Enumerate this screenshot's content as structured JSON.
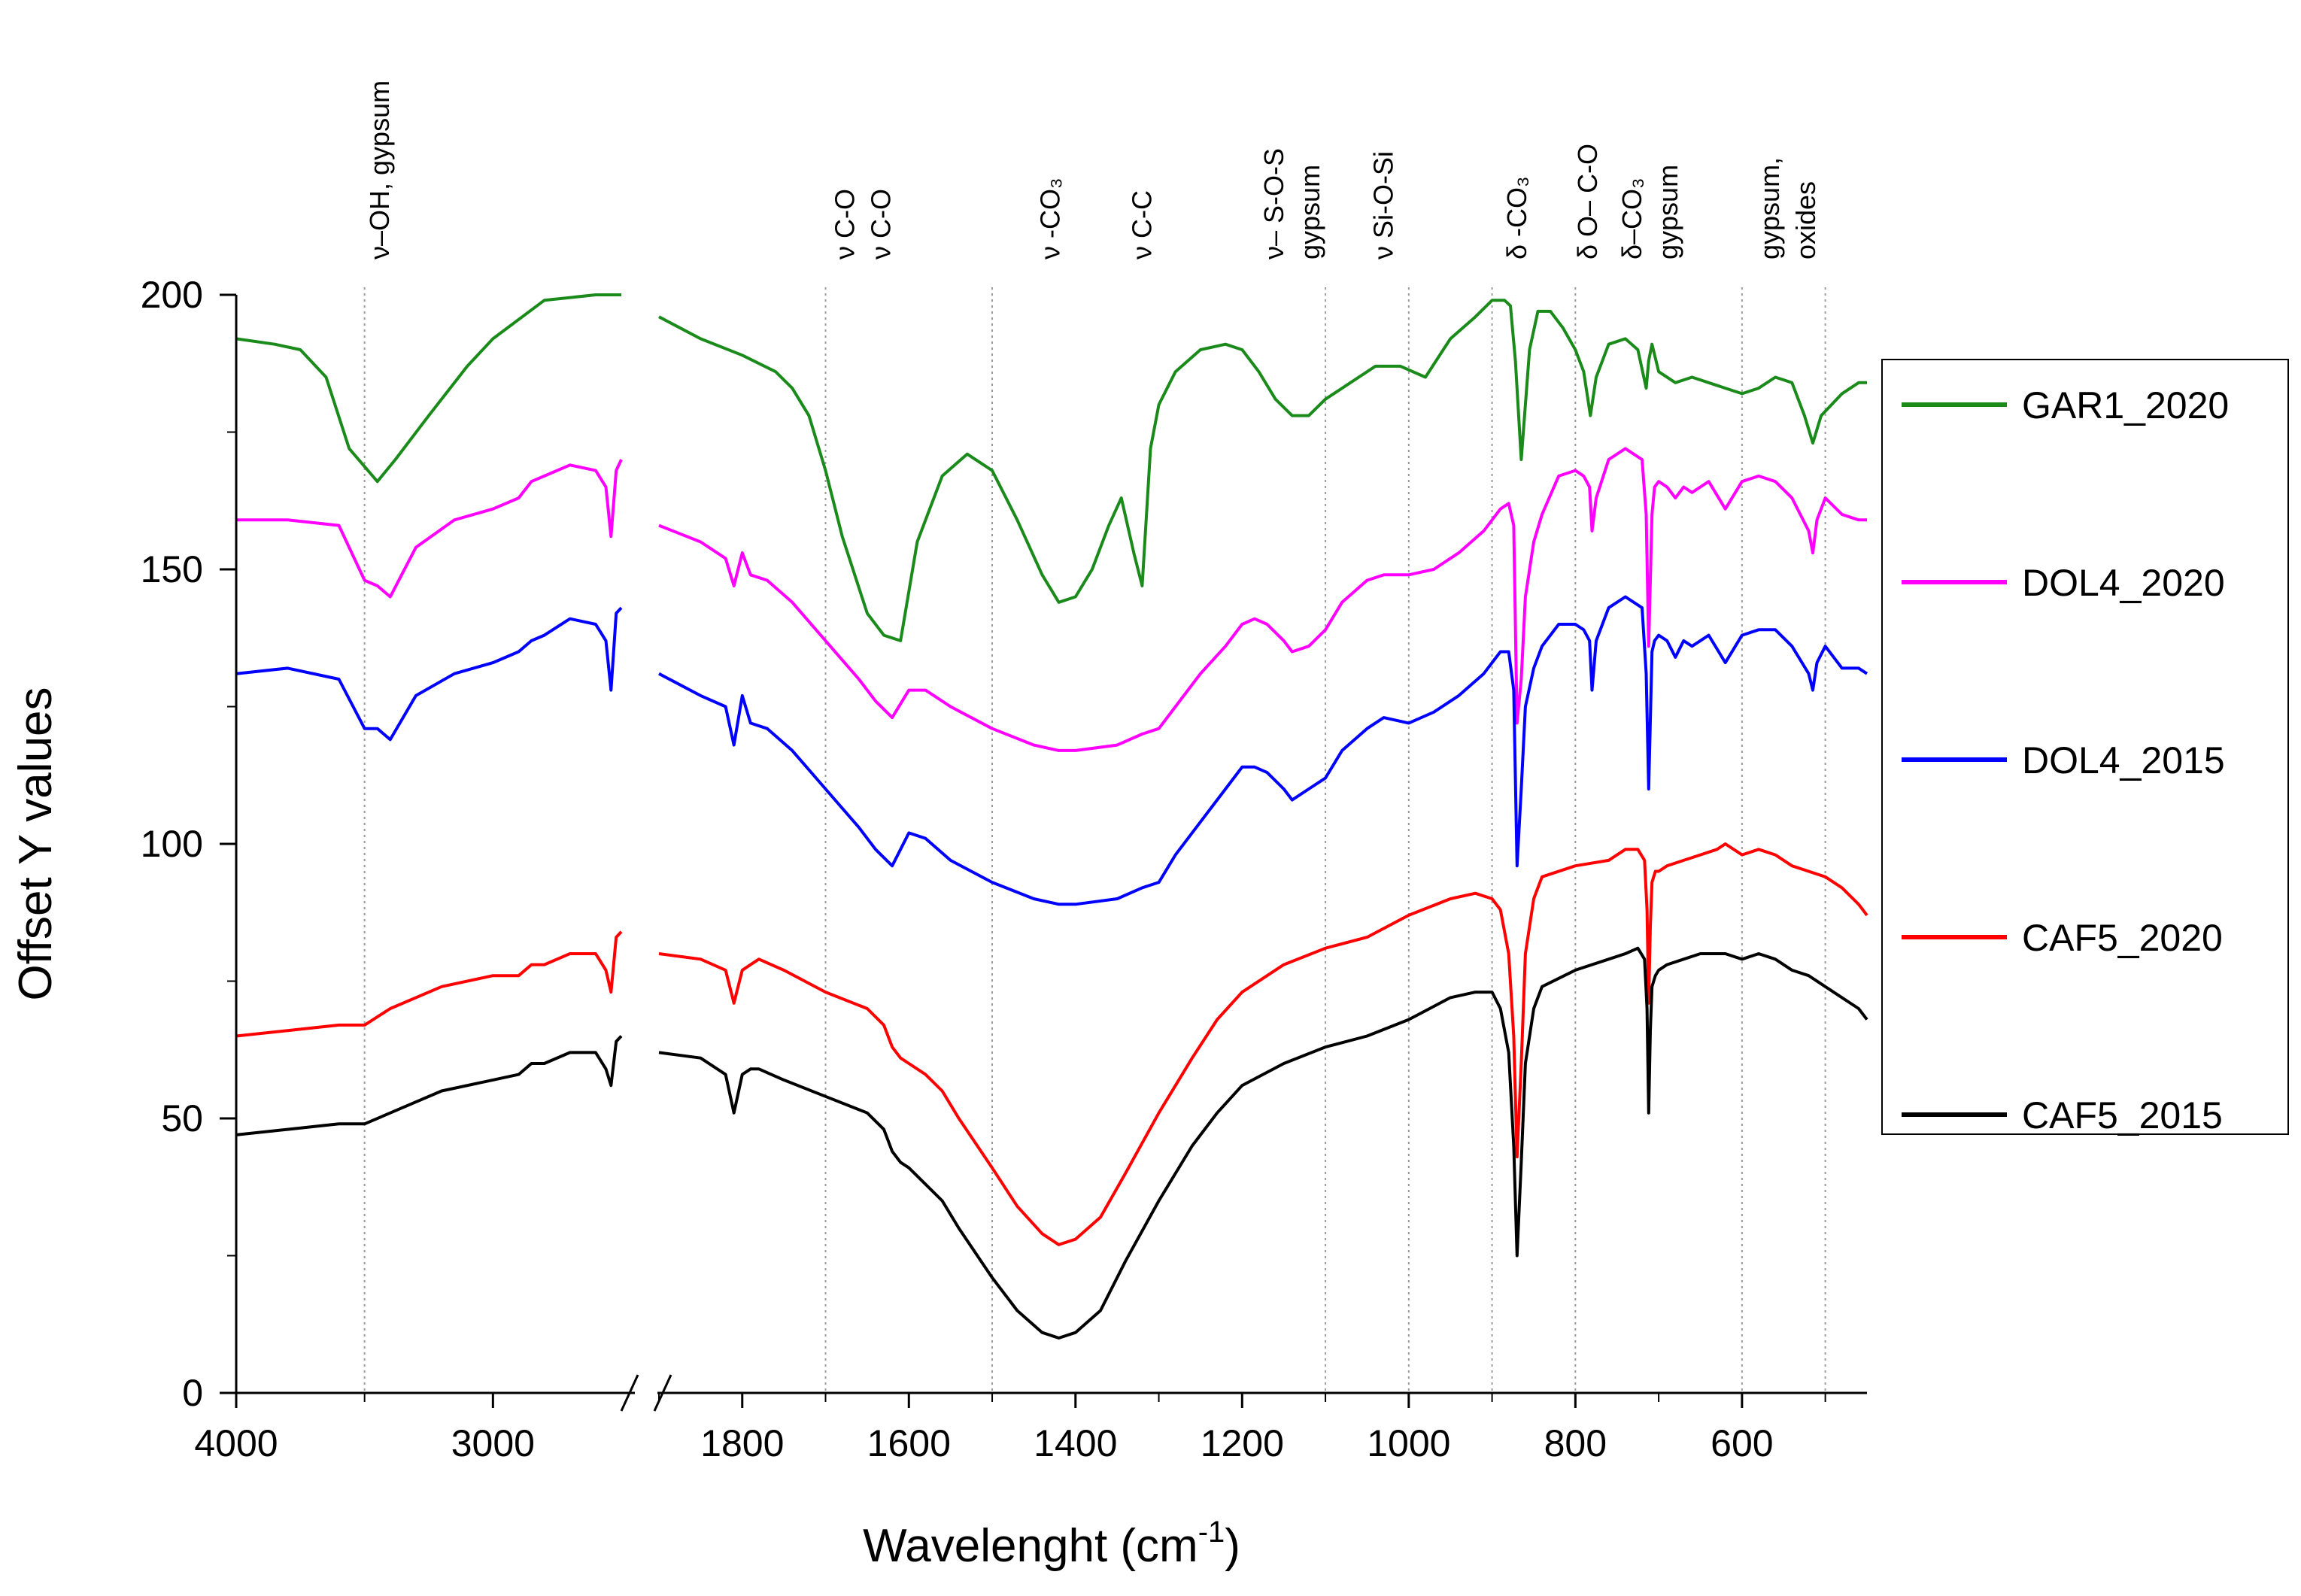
{
  "chart_data": {
    "type": "line",
    "title": "",
    "xlabel": "Wavelenght (cm",
    "xlabel_sup": "-1",
    "xlabel_close": ")",
    "ylabel": "Offset Y values",
    "ylim": [
      0,
      200
    ],
    "yticks": [
      "0",
      "50",
      "100",
      "150",
      "200"
    ],
    "xaxis_segments": [
      {
        "range": [
          4000,
          2500
        ],
        "ticks": [
          "4000",
          "3000"
        ],
        "tick_values": [
          4000,
          3000
        ]
      },
      {
        "range": [
          1900,
          450
        ],
        "ticks": [
          "1800",
          "1600",
          "1400",
          "1200",
          "1000",
          "800",
          "600"
        ],
        "tick_values": [
          1800,
          1600,
          1400,
          1200,
          1000,
          800,
          600
        ]
      }
    ],
    "reference_lines": [
      3500,
      1700,
      1500,
      1100,
      1000,
      900,
      800,
      600,
      500
    ],
    "band_labels": [
      {
        "x": 3440,
        "lines": [
          "ν–OH, gypsum"
        ]
      },
      {
        "x": 1655,
        "lines": [
          "ν C-O",
          "ν C-O"
        ]
      },
      {
        "x": 1430,
        "lines": [
          "ν -CO₃"
        ]
      },
      {
        "x": 1320,
        "lines": [
          "ν C-C"
        ]
      },
      {
        "x": 1140,
        "lines": [
          "ν– S-O-S",
          "gypsum"
        ]
      },
      {
        "x": 1030,
        "lines": [
          "ν  Si-O-Si"
        ]
      },
      {
        "x": 870,
        "lines": [
          "δ -CO₃"
        ]
      },
      {
        "x": 785,
        "lines": [
          "δ O– C-O"
        ]
      },
      {
        "x": 710,
        "lines": [
          "δ–CO₃",
          "gypsum"
        ]
      },
      {
        "x": 545,
        "lines": [
          "gypsum,",
          "oxides"
        ]
      }
    ],
    "legend_position": "right",
    "series": [
      {
        "name": "GAR1_2020",
        "color": "#1a8a1a",
        "x": [
          4000,
          3850,
          3750,
          3650,
          3560,
          3450,
          3380,
          3250,
          3100,
          3000,
          2800,
          2600,
          2500,
          1900,
          1850,
          1800,
          1760,
          1740,
          1720,
          1700,
          1680,
          1650,
          1630,
          1610,
          1590,
          1560,
          1530,
          1500,
          1470,
          1440,
          1420,
          1400,
          1380,
          1360,
          1345,
          1330,
          1320,
          1310,
          1300,
          1280,
          1250,
          1220,
          1200,
          1180,
          1160,
          1140,
          1120,
          1100,
          1070,
          1040,
          1010,
          980,
          950,
          920,
          900,
          885,
          878,
          872,
          865,
          855,
          845,
          830,
          815,
          800,
          790,
          782,
          775,
          760,
          740,
          725,
          715,
          712,
          708,
          700,
          680,
          660,
          640,
          620,
          600,
          580,
          560,
          540,
          525,
          515,
          505,
          480,
          460,
          450
        ],
        "y": [
          192,
          191,
          190,
          185,
          172,
          166,
          170,
          178,
          187,
          192,
          199,
          200,
          200,
          196,
          192,
          189,
          186,
          183,
          178,
          168,
          156,
          142,
          138,
          137,
          155,
          167,
          171,
          168,
          159,
          149,
          144,
          145,
          150,
          158,
          163,
          153,
          147,
          172,
          180,
          186,
          190,
          191,
          190,
          186,
          181,
          178,
          178,
          181,
          184,
          187,
          187,
          185,
          192,
          196,
          199,
          199,
          198,
          188,
          170,
          190,
          197,
          197,
          194,
          190,
          186,
          178,
          185,
          191,
          192,
          190,
          183,
          188,
          191,
          186,
          184,
          185,
          184,
          183,
          182,
          183,
          185,
          184,
          178,
          173,
          178,
          182,
          184,
          184
        ]
      },
      {
        "name": "DOL4_2020",
        "color": "#ff00ff",
        "x": [
          4000,
          3800,
          3600,
          3500,
          3450,
          3400,
          3300,
          3150,
          3000,
          2900,
          2850,
          2800,
          2700,
          2600,
          2560,
          2540,
          2520,
          2500,
          1900,
          1850,
          1820,
          1810,
          1800,
          1790,
          1770,
          1740,
          1700,
          1660,
          1640,
          1620,
          1600,
          1580,
          1550,
          1500,
          1450,
          1420,
          1400,
          1350,
          1320,
          1300,
          1280,
          1250,
          1220,
          1200,
          1185,
          1170,
          1150,
          1140,
          1120,
          1100,
          1080,
          1050,
          1030,
          1000,
          970,
          940,
          910,
          890,
          880,
          874,
          870,
          865,
          860,
          850,
          840,
          820,
          800,
          790,
          783,
          780,
          775,
          760,
          740,
          720,
          715,
          712,
          708,
          705,
          700,
          690,
          680,
          670,
          660,
          650,
          640,
          620,
          600,
          580,
          560,
          540,
          520,
          515,
          510,
          500,
          480,
          460,
          450
        ],
        "y": [
          159,
          159,
          158,
          148,
          147,
          145,
          154,
          159,
          161,
          163,
          166,
          167,
          169,
          168,
          165,
          156,
          168,
          170,
          158,
          155,
          152,
          147,
          153,
          149,
          148,
          144,
          137,
          130,
          126,
          123,
          128,
          128,
          125,
          121,
          118,
          117,
          117,
          118,
          120,
          121,
          125,
          131,
          136,
          140,
          141,
          140,
          137,
          135,
          136,
          139,
          144,
          148,
          149,
          149,
          150,
          153,
          157,
          161,
          162,
          158,
          122,
          130,
          145,
          155,
          160,
          167,
          168,
          167,
          165,
          157,
          163,
          170,
          172,
          170,
          160,
          136,
          160,
          165,
          166,
          165,
          163,
          165,
          164,
          165,
          166,
          161,
          166,
          167,
          166,
          163,
          157,
          153,
          159,
          163,
          160,
          159,
          159
        ]
      },
      {
        "name": "DOL4_2015",
        "color": "#0000ff",
        "x": [
          4000,
          3800,
          3600,
          3500,
          3450,
          3400,
          3300,
          3150,
          3000,
          2900,
          2850,
          2800,
          2700,
          2600,
          2560,
          2540,
          2520,
          2500,
          1900,
          1850,
          1820,
          1810,
          1800,
          1790,
          1770,
          1740,
          1700,
          1660,
          1640,
          1620,
          1600,
          1580,
          1550,
          1500,
          1450,
          1420,
          1400,
          1350,
          1320,
          1300,
          1280,
          1250,
          1220,
          1200,
          1185,
          1170,
          1150,
          1140,
          1120,
          1100,
          1080,
          1050,
          1030,
          1000,
          970,
          940,
          910,
          890,
          880,
          874,
          870,
          865,
          860,
          850,
          840,
          820,
          800,
          790,
          783,
          780,
          775,
          760,
          740,
          720,
          715,
          712,
          708,
          705,
          700,
          690,
          680,
          670,
          660,
          650,
          640,
          620,
          600,
          580,
          560,
          540,
          520,
          515,
          510,
          500,
          480,
          460,
          450
        ],
        "y": [
          131,
          132,
          130,
          121,
          121,
          119,
          127,
          131,
          133,
          135,
          137,
          138,
          141,
          140,
          137,
          128,
          142,
          143,
          131,
          127,
          125,
          118,
          127,
          122,
          121,
          117,
          110,
          103,
          99,
          96,
          102,
          101,
          97,
          93,
          90,
          89,
          89,
          90,
          92,
          93,
          98,
          104,
          110,
          114,
          114,
          113,
          110,
          108,
          110,
          112,
          117,
          121,
          123,
          122,
          124,
          127,
          131,
          135,
          135,
          128,
          96,
          110,
          125,
          132,
          136,
          140,
          140,
          139,
          137,
          128,
          137,
          143,
          145,
          143,
          131,
          110,
          135,
          137,
          138,
          137,
          134,
          137,
          136,
          137,
          138,
          133,
          138,
          139,
          139,
          136,
          131,
          128,
          133,
          136,
          132,
          132,
          131
        ]
      },
      {
        "name": "CAF5_2020",
        "color": "#ff0000",
        "x": [
          4000,
          3800,
          3600,
          3500,
          3400,
          3200,
          3000,
          2900,
          2850,
          2800,
          2700,
          2600,
          2560,
          2540,
          2520,
          2500,
          1900,
          1850,
          1820,
          1810,
          1800,
          1790,
          1780,
          1750,
          1700,
          1650,
          1630,
          1620,
          1610,
          1600,
          1580,
          1560,
          1540,
          1500,
          1470,
          1440,
          1420,
          1400,
          1370,
          1340,
          1300,
          1260,
          1230,
          1200,
          1150,
          1100,
          1050,
          1000,
          950,
          920,
          900,
          890,
          880,
          874,
          870,
          865,
          860,
          850,
          840,
          800,
          760,
          740,
          725,
          717,
          714,
          712,
          710,
          708,
          704,
          700,
          690,
          670,
          650,
          630,
          620,
          600,
          580,
          560,
          540,
          520,
          500,
          480,
          460,
          450
        ],
        "y": [
          65,
          66,
          67,
          67,
          70,
          74,
          76,
          76,
          78,
          78,
          80,
          80,
          77,
          73,
          83,
          84,
          80,
          79,
          77,
          71,
          77,
          78,
          79,
          77,
          73,
          70,
          67,
          63,
          61,
          60,
          58,
          55,
          50,
          41,
          34,
          29,
          27,
          28,
          32,
          40,
          51,
          61,
          68,
          73,
          78,
          81,
          83,
          87,
          90,
          91,
          90,
          88,
          80,
          65,
          43,
          60,
          80,
          90,
          94,
          96,
          97,
          99,
          99,
          97,
          88,
          71,
          85,
          93,
          95,
          95,
          96,
          97,
          98,
          99,
          100,
          98,
          99,
          98,
          96,
          95,
          94,
          92,
          89,
          87
        ]
      },
      {
        "name": "CAF5_2015",
        "color": "#000000",
        "x": [
          4000,
          3800,
          3600,
          3500,
          3400,
          3200,
          3000,
          2900,
          2850,
          2800,
          2700,
          2600,
          2560,
          2540,
          2520,
          2500,
          1900,
          1850,
          1820,
          1810,
          1800,
          1790,
          1780,
          1750,
          1700,
          1650,
          1630,
          1620,
          1610,
          1600,
          1580,
          1560,
          1540,
          1500,
          1470,
          1440,
          1420,
          1400,
          1370,
          1340,
          1300,
          1260,
          1230,
          1200,
          1150,
          1100,
          1050,
          1000,
          950,
          920,
          900,
          890,
          880,
          874,
          870,
          865,
          860,
          850,
          840,
          800,
          760,
          740,
          725,
          717,
          714,
          712,
          710,
          708,
          704,
          700,
          690,
          670,
          650,
          630,
          620,
          600,
          580,
          560,
          540,
          520,
          500,
          480,
          460,
          450
        ],
        "y": [
          47,
          48,
          49,
          49,
          51,
          55,
          57,
          58,
          60,
          60,
          62,
          62,
          59,
          56,
          64,
          65,
          62,
          61,
          58,
          51,
          58,
          59,
          59,
          57,
          54,
          51,
          48,
          44,
          42,
          41,
          38,
          35,
          30,
          21,
          15,
          11,
          10,
          11,
          15,
          24,
          35,
          45,
          51,
          56,
          60,
          63,
          65,
          68,
          72,
          73,
          73,
          70,
          62,
          45,
          25,
          42,
          60,
          70,
          74,
          77,
          79,
          80,
          81,
          79,
          70,
          51,
          66,
          74,
          76,
          77,
          78,
          79,
          80,
          80,
          80,
          79,
          80,
          79,
          77,
          76,
          74,
          72,
          70,
          68
        ]
      }
    ]
  }
}
